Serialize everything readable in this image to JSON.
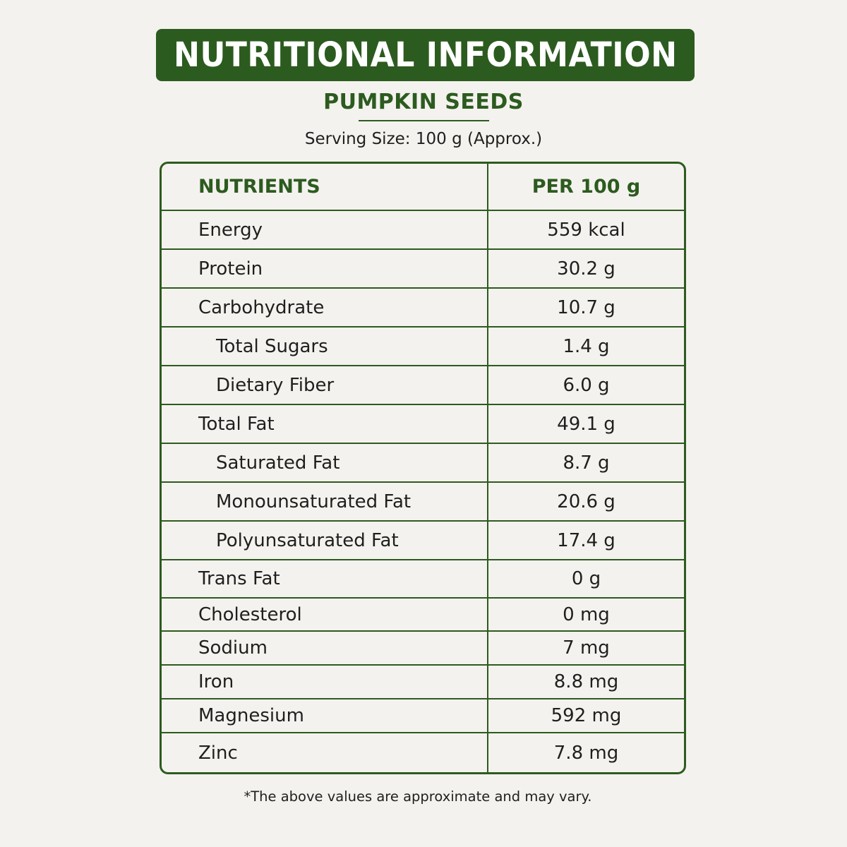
{
  "header": {
    "title": "NUTRITIONAL INFORMATION",
    "subtitle": "PUMPKIN SEEDS",
    "serving_size": "Serving Size: 100 g (Approx.)"
  },
  "table": {
    "columns": [
      "NUTRIENTS",
      "PER 100 g"
    ],
    "rows": [
      {
        "nutrient": "Energy",
        "value": "559 kcal",
        "sub": false
      },
      {
        "nutrient": "Protein",
        "value": "30.2 g",
        "sub": false
      },
      {
        "nutrient": "Carbohydrate",
        "value": "10.7 g",
        "sub": false
      },
      {
        "nutrient": "Total Sugars",
        "value": "1.4 g",
        "sub": true
      },
      {
        "nutrient": "Dietary Fiber",
        "value": "6.0 g",
        "sub": true
      },
      {
        "nutrient": "Total Fat",
        "value": "49.1 g",
        "sub": false
      },
      {
        "nutrient": "Saturated Fat",
        "value": "8.7 g",
        "sub": true
      },
      {
        "nutrient": "Monounsaturated Fat",
        "value": "20.6 g",
        "sub": true
      },
      {
        "nutrient": "Polyunsaturated Fat",
        "value": "17.4 g",
        "sub": true
      },
      {
        "nutrient": "Trans Fat",
        "value": "0 g",
        "sub": false
      },
      {
        "nutrient": "Cholesterol",
        "value": "0 mg",
        "sub": false
      },
      {
        "nutrient": "Sodium",
        "value": "7 mg",
        "sub": false
      },
      {
        "nutrient": "Iron",
        "value": "8.8 mg",
        "sub": false
      },
      {
        "nutrient": "Magnesium",
        "value": "592 mg",
        "sub": false
      },
      {
        "nutrient": "Zinc",
        "value": "7.8 mg",
        "sub": false
      }
    ]
  },
  "footnote": "*The above values are approximate and may vary.",
  "colors": {
    "accent": "#2c5b1f",
    "background": "#f4f2ee",
    "text": "#1f1f1f"
  }
}
